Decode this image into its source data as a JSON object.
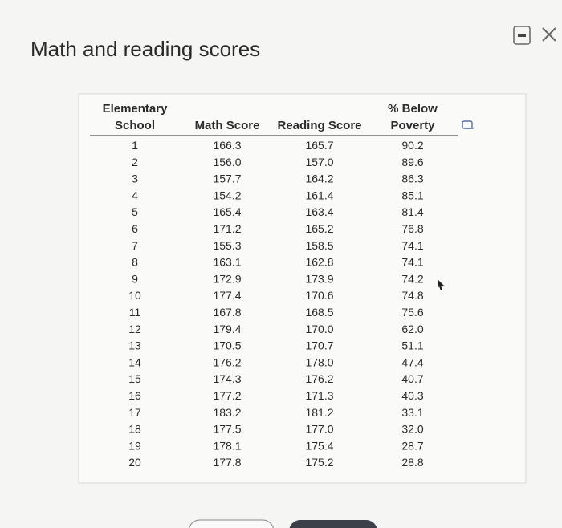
{
  "title": "Math and reading scores",
  "table": {
    "headers": [
      [
        "Elementary",
        "School"
      ],
      [
        "Math Score"
      ],
      [
        "Reading Score"
      ],
      [
        "% Below",
        "Poverty"
      ]
    ],
    "rows": [
      [
        "1",
        "166.3",
        "165.7",
        "90.2"
      ],
      [
        "2",
        "156.0",
        "157.0",
        "89.6"
      ],
      [
        "3",
        "157.7",
        "164.2",
        "86.3"
      ],
      [
        "4",
        "154.2",
        "161.4",
        "85.1"
      ],
      [
        "5",
        "165.4",
        "163.4",
        "81.4"
      ],
      [
        "6",
        "171.2",
        "165.2",
        "76.8"
      ],
      [
        "7",
        "155.3",
        "158.5",
        "74.1"
      ],
      [
        "8",
        "163.1",
        "162.8",
        "74.1"
      ],
      [
        "9",
        "172.9",
        "173.9",
        "74.2"
      ],
      [
        "10",
        "177.4",
        "170.6",
        "74.8"
      ],
      [
        "11",
        "167.8",
        "168.5",
        "75.6"
      ],
      [
        "12",
        "179.4",
        "170.0",
        "62.0"
      ],
      [
        "13",
        "170.5",
        "170.7",
        "51.1"
      ],
      [
        "14",
        "176.2",
        "178.0",
        "47.4"
      ],
      [
        "15",
        "174.3",
        "176.2",
        "40.7"
      ],
      [
        "16",
        "177.2",
        "171.3",
        "40.3"
      ],
      [
        "17",
        "183.2",
        "181.2",
        "33.1"
      ],
      [
        "18",
        "177.5",
        "177.0",
        "32.0"
      ],
      [
        "19",
        "178.1",
        "175.4",
        "28.7"
      ],
      [
        "20",
        "177.8",
        "175.2",
        "28.8"
      ]
    ]
  }
}
